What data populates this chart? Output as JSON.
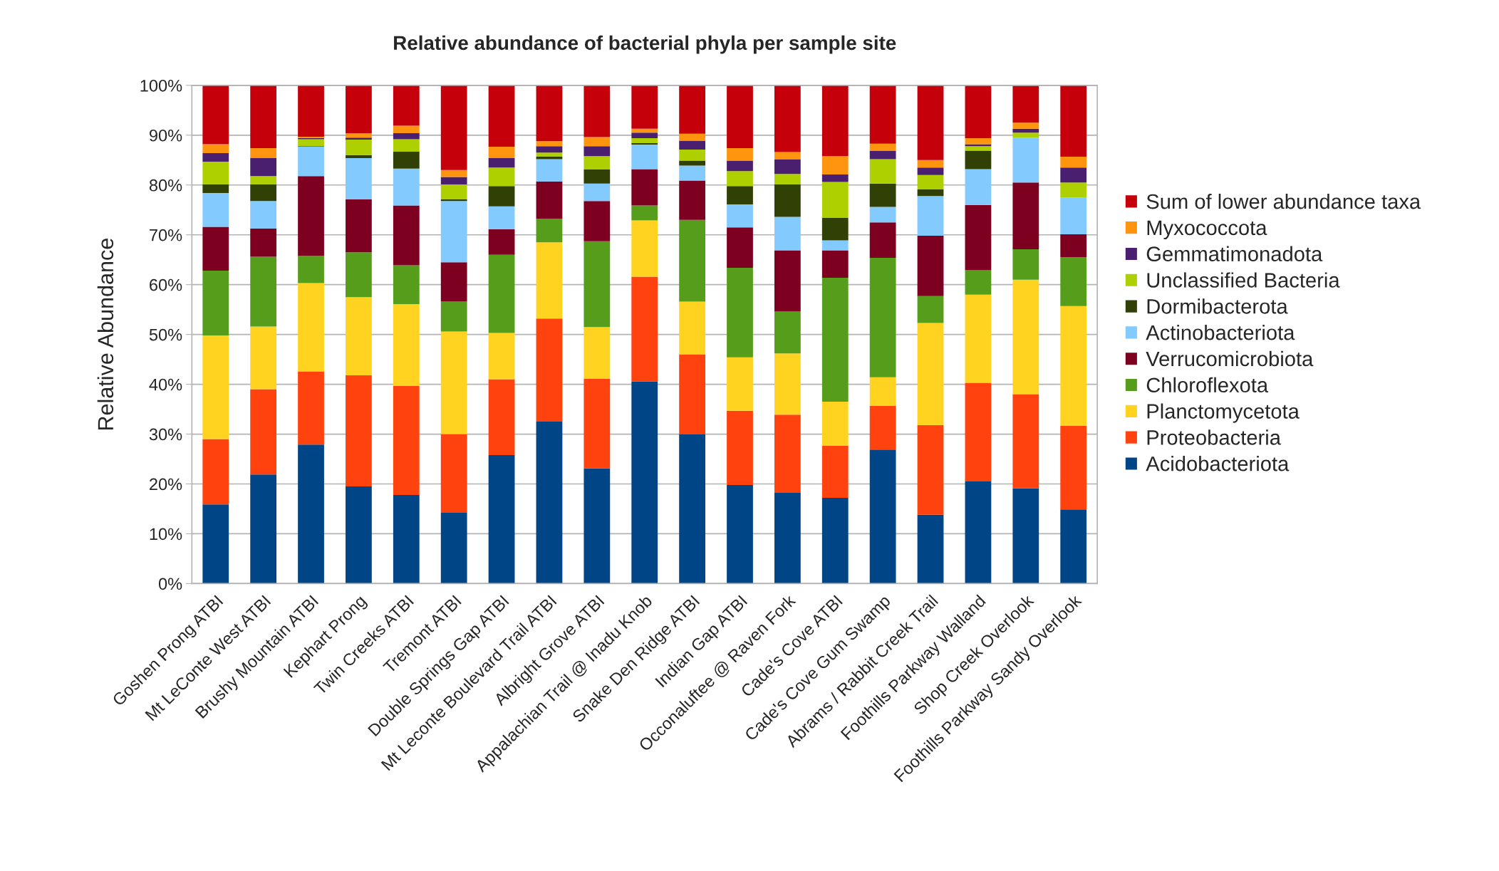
{
  "chart_data": {
    "type": "bar",
    "stacked": true,
    "title": "Relative abundance of bacterial phyla per sample site",
    "ylabel": "Relative Abundance",
    "categories": [
      "Goshen Prong ATBI",
      "Mt LeConte West ATBI",
      "Brushy Mountain ATBI",
      "Kephart Prong",
      "Twin Creeks ATBI",
      "Tremont ATBI",
      "Double Springs Gap ATBI",
      "Mt Leconte Boulevard Trail ATBI",
      "Albright Grove ATBI",
      "Appalachian Trail @ Inadu Knob",
      "Snake Den Ridge ATBI",
      "Indian Gap ATBI",
      "Occonaluftee @ Raven Fork",
      "Cade's Cove ATBI",
      "Cade's Cove Gum Swamp",
      "Abrams / Rabbit Creek Trail",
      "Foothills Parkway Walland",
      "Shop Creek Overlook",
      "Foothills Parkway Sandy Overlook"
    ],
    "series": [
      {
        "name": "Acidobacteriota",
        "color": "#004586",
        "values": [
          15.9,
          21.9,
          27.9,
          19.5,
          17.8,
          14.2,
          25.8,
          32.5,
          23.1,
          40.6,
          30.0,
          19.8,
          18.2,
          17.2,
          26.9,
          13.8,
          20.5,
          19.1,
          14.9
        ]
      },
      {
        "name": "Proteobacteria",
        "color": "#ff420e",
        "values": [
          13.1,
          17.1,
          14.7,
          22.3,
          21.9,
          15.8,
          15.2,
          20.7,
          18.0,
          21.0,
          16.0,
          14.9,
          15.7,
          10.5,
          8.8,
          18.0,
          19.8,
          18.9,
          16.8
        ]
      },
      {
        "name": "Planctomycetota",
        "color": "#ffd320",
        "values": [
          20.8,
          12.6,
          17.7,
          15.7,
          16.4,
          20.6,
          9.3,
          15.3,
          10.4,
          11.3,
          10.6,
          10.7,
          12.3,
          8.8,
          5.7,
          20.5,
          17.7,
          23.0,
          24.0
        ]
      },
      {
        "name": "Chloroflexota",
        "color": "#579d1c",
        "values": [
          13.0,
          14.0,
          5.5,
          9.0,
          7.8,
          6.0,
          15.7,
          4.7,
          17.2,
          3.0,
          16.4,
          18.0,
          8.4,
          24.9,
          24.0,
          5.4,
          4.9,
          6.1,
          9.8
        ]
      },
      {
        "name": "Verrucomicrobiota",
        "color": "#7e0021",
        "values": [
          8.8,
          5.7,
          16.0,
          10.6,
          12.0,
          7.9,
          5.1,
          7.5,
          8.1,
          7.3,
          7.9,
          8.1,
          12.3,
          5.5,
          7.1,
          12.1,
          13.1,
          13.4,
          4.6
        ]
      },
      {
        "name": "Actinobacteriota",
        "color": "#83caff",
        "values": [
          6.8,
          5.5,
          5.9,
          8.3,
          7.4,
          12.3,
          4.6,
          4.5,
          3.5,
          4.9,
          3.0,
          4.6,
          6.7,
          2.0,
          3.1,
          8.0,
          7.2,
          9.0,
          7.4
        ]
      },
      {
        "name": "Dormibacterota",
        "color": "#314004",
        "values": [
          1.7,
          3.3,
          0.1,
          0.6,
          3.4,
          0.3,
          4.1,
          0.5,
          2.8,
          0.3,
          1.0,
          3.7,
          6.5,
          4.5,
          4.7,
          1.3,
          3.7,
          null,
          0
        ]
      },
      {
        "name": "Unclassified Bacteria",
        "color": "#aecf00",
        "values": [
          4.6,
          1.7,
          1.4,
          3.1,
          2.5,
          3.0,
          3.7,
          0.8,
          2.7,
          1.0,
          2.2,
          3.0,
          2.1,
          7.2,
          4.9,
          2.9,
          0.9,
          1.0,
          3.0
        ]
      },
      {
        "name": "Gemmatimonadota",
        "color": "#4b1f6f",
        "values": [
          1.7,
          3.6,
          0.2,
          0.4,
          1.2,
          1.5,
          1.9,
          1.3,
          2.0,
          1.1,
          1.8,
          2.1,
          3.0,
          1.5,
          1.7,
          1.5,
          0.4,
          0.8,
          3.0
        ]
      },
      {
        "name": "Myxococcota",
        "color": "#ff950e",
        "values": [
          1.8,
          2.0,
          0.3,
          0.9,
          1.5,
          1.4,
          2.3,
          1.0,
          1.8,
          0.8,
          1.4,
          2.5,
          1.4,
          3.7,
          1.4,
          1.5,
          1.2,
          1.2,
          2.2
        ]
      },
      {
        "name": "Sum of lower abundance taxa",
        "color": "#c5000b",
        "values": [
          11.8,
          12.6,
          10.4,
          9.6,
          8.1,
          17.0,
          12.3,
          11.2,
          10.4,
          8.7,
          9.7,
          12.6,
          13.4,
          14.2,
          11.7,
          15.0,
          10.6,
          7.4,
          14.3
        ]
      }
    ],
    "ylim": [
      0,
      100
    ],
    "yticks": [
      {
        "value": 0,
        "label": "0%"
      },
      {
        "value": 10,
        "label": "10%"
      },
      {
        "value": 20,
        "label": "20%"
      },
      {
        "value": 30,
        "label": "30%"
      },
      {
        "value": 40,
        "label": "40%"
      },
      {
        "value": 50,
        "label": "50%"
      },
      {
        "value": 60,
        "label": "60%"
      },
      {
        "value": 70,
        "label": "70%"
      },
      {
        "value": 80,
        "label": "80%"
      },
      {
        "value": 90,
        "label": "90%"
      },
      {
        "value": 100,
        "label": "100%"
      }
    ],
    "grid": "y",
    "legend": "right"
  }
}
